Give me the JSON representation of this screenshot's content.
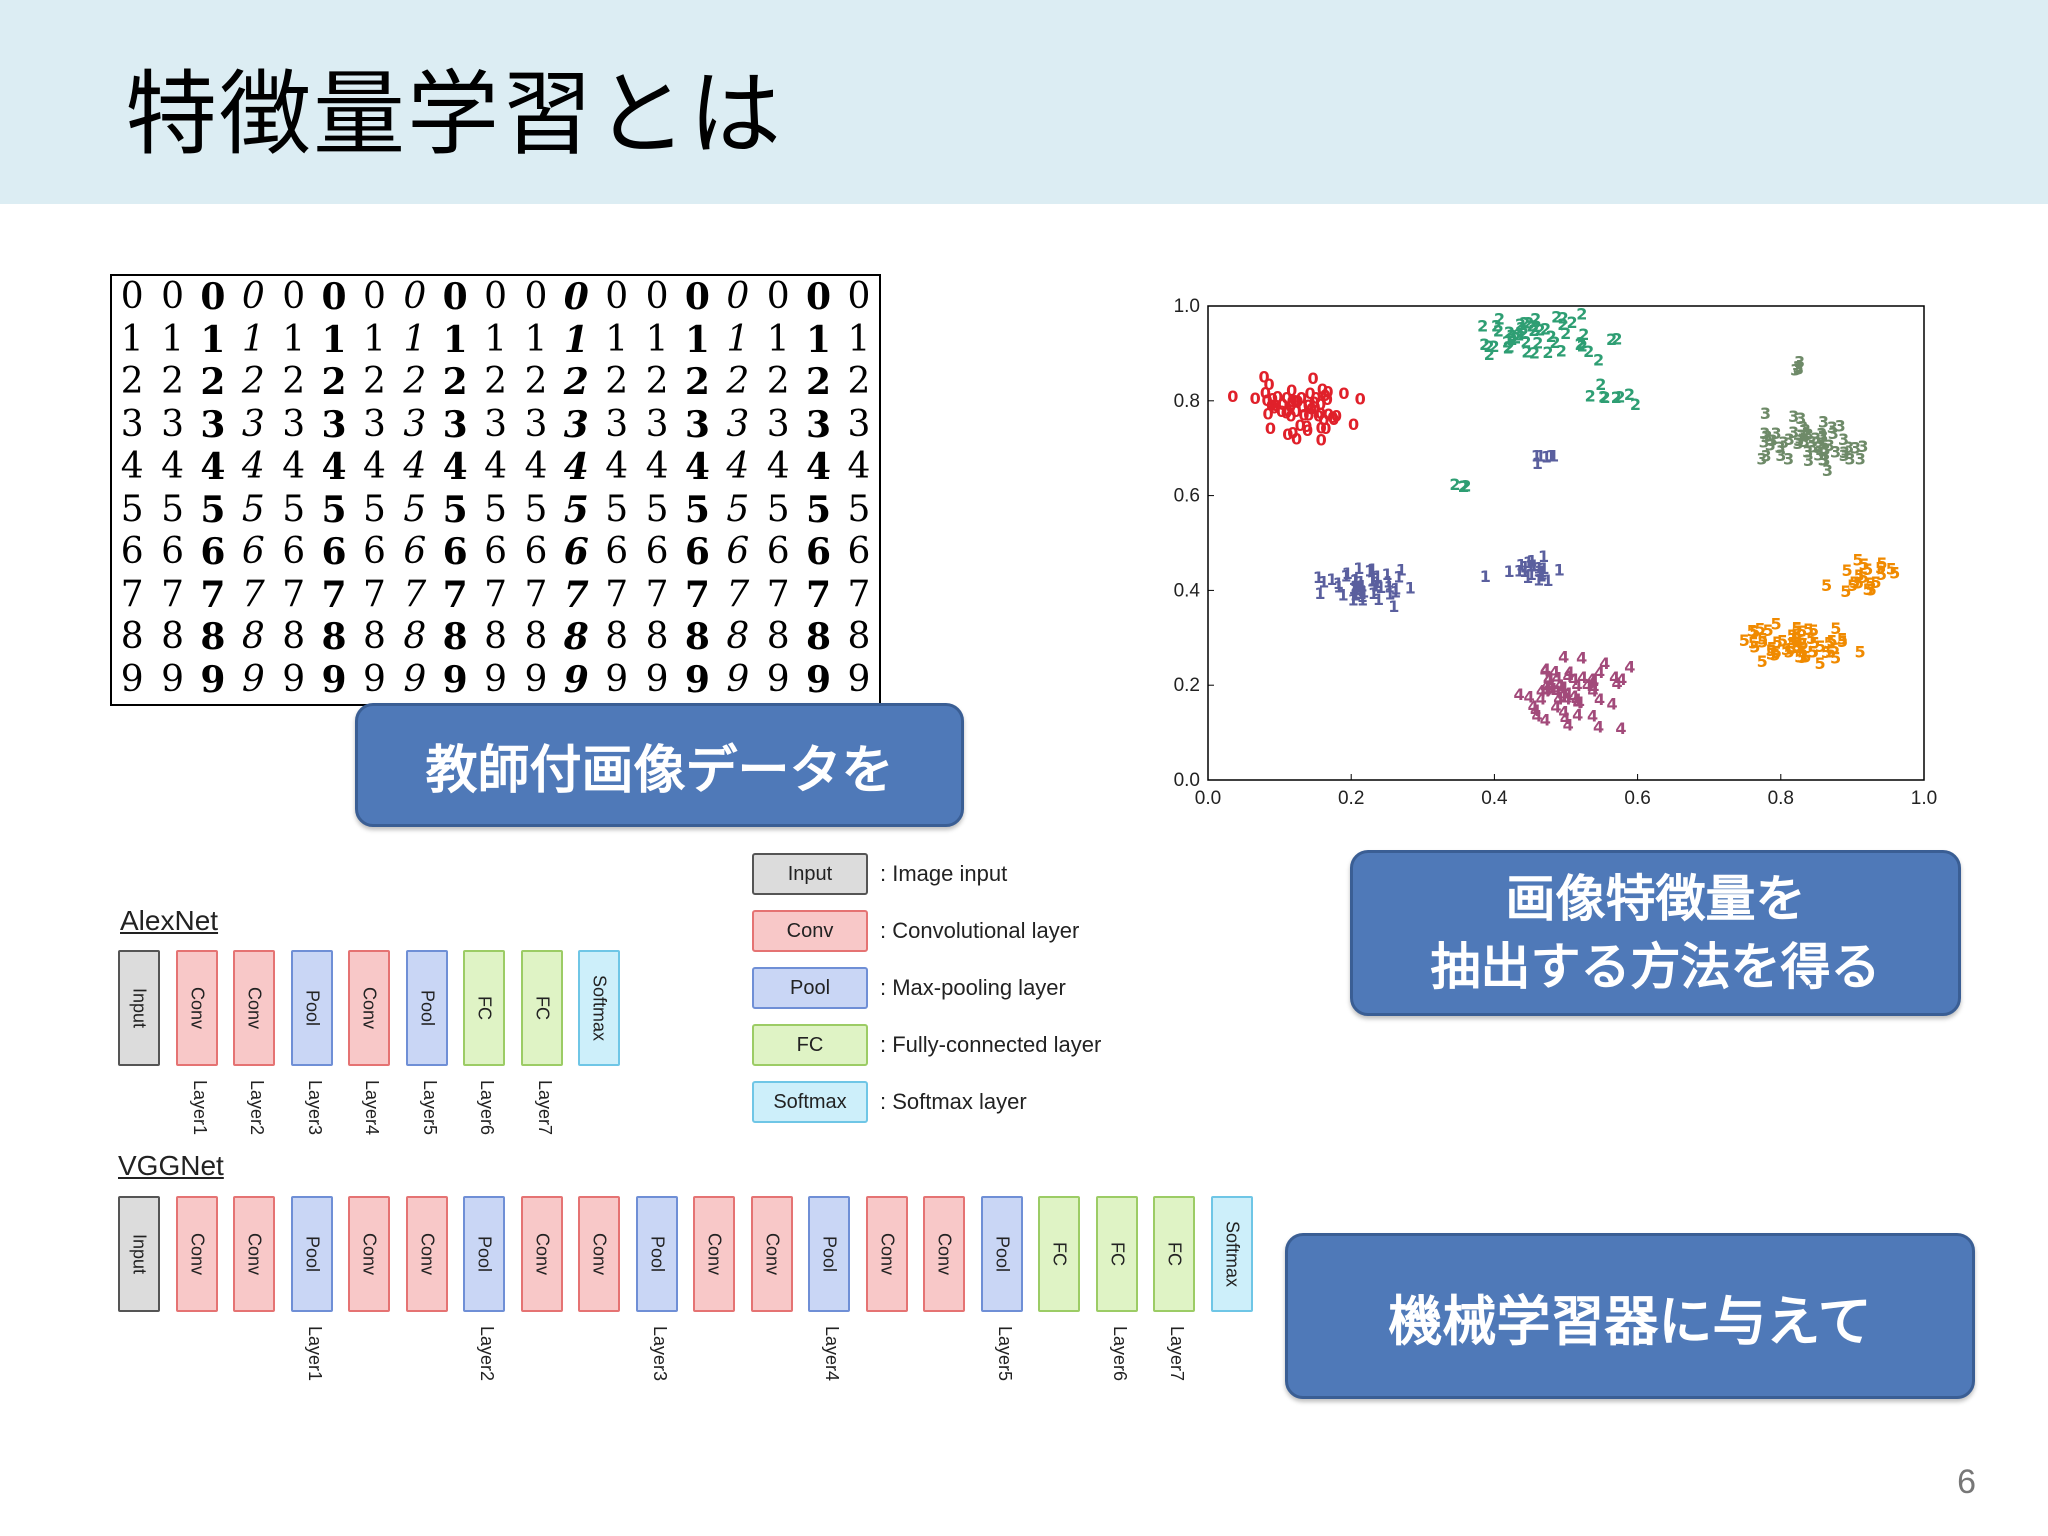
{
  "slide": {
    "title": "特徴量学習とは",
    "page_number": "6"
  },
  "mnist": {
    "rows": [
      [
        "0",
        "0",
        "0",
        "0",
        "0",
        "0",
        "0",
        "0",
        "0",
        "0",
        "0",
        "0",
        "0",
        "0",
        "0",
        "0",
        "0",
        "0",
        "0"
      ],
      [
        "1",
        "1",
        "1",
        "1",
        "1",
        "1",
        "1",
        "1",
        "1",
        "1",
        "1",
        "1",
        "1",
        "1",
        "1",
        "1",
        "1",
        "1",
        "1"
      ],
      [
        "2",
        "2",
        "2",
        "2",
        "2",
        "2",
        "2",
        "2",
        "2",
        "2",
        "2",
        "2",
        "2",
        "2",
        "2",
        "2",
        "2",
        "2",
        "2"
      ],
      [
        "3",
        "3",
        "3",
        "3",
        "3",
        "3",
        "3",
        "3",
        "3",
        "3",
        "3",
        "3",
        "3",
        "3",
        "3",
        "3",
        "3",
        "3",
        "3"
      ],
      [
        "4",
        "4",
        "4",
        "4",
        "4",
        "4",
        "4",
        "4",
        "4",
        "4",
        "4",
        "4",
        "4",
        "4",
        "4",
        "4",
        "4",
        "4",
        "4"
      ],
      [
        "5",
        "5",
        "5",
        "5",
        "5",
        "5",
        "5",
        "5",
        "5",
        "5",
        "5",
        "5",
        "5",
        "5",
        "5",
        "5",
        "5",
        "5",
        "5"
      ],
      [
        "6",
        "6",
        "6",
        "6",
        "6",
        "6",
        "6",
        "6",
        "6",
        "6",
        "6",
        "6",
        "6",
        "6",
        "6",
        "6",
        "6",
        "6",
        "6"
      ],
      [
        "7",
        "7",
        "7",
        "7",
        "7",
        "7",
        "7",
        "7",
        "7",
        "7",
        "7",
        "7",
        "7",
        "7",
        "7",
        "7",
        "7",
        "7",
        "7"
      ],
      [
        "8",
        "8",
        "8",
        "8",
        "8",
        "8",
        "8",
        "8",
        "8",
        "8",
        "8",
        "8",
        "8",
        "8",
        "8",
        "8",
        "8",
        "8",
        "8"
      ],
      [
        "9",
        "9",
        "9",
        "9",
        "9",
        "9",
        "9",
        "9",
        "9",
        "9",
        "9",
        "9",
        "9",
        "9",
        "9",
        "9",
        "9",
        "9",
        "9"
      ]
    ]
  },
  "callouts": {
    "data": "教師付画像データを",
    "method_line1": "画像特徴量を",
    "method_line2": "抽出する方法を得る",
    "learner": "機械学習器に与えて"
  },
  "chart_data": {
    "type": "scatter",
    "xlim": [
      0.0,
      1.0
    ],
    "ylim": [
      0.0,
      1.0
    ],
    "xticks": [
      "0.0",
      "0.2",
      "0.4",
      "0.6",
      "0.8",
      "1.0"
    ],
    "yticks": [
      "0.0",
      "0.2",
      "0.4",
      "0.6",
      "0.8",
      "1.0"
    ],
    "clusters": [
      {
        "label": "0",
        "color": "#e0202a",
        "center": [
          0.13,
          0.77
        ],
        "spread": [
          0.06,
          0.05
        ],
        "n": 60
      },
      {
        "label": "1",
        "color": "#5a5f9e",
        "center": [
          0.22,
          0.4
        ],
        "spread": [
          0.05,
          0.03
        ],
        "n": 45
      },
      {
        "label": "1",
        "color": "#5a5f9e",
        "center": [
          0.45,
          0.43
        ],
        "spread": [
          0.04,
          0.02
        ],
        "n": 22
      },
      {
        "label": "1",
        "color": "#5a5f9e",
        "center": [
          0.47,
          0.67
        ],
        "spread": [
          0.015,
          0.01
        ],
        "n": 6
      },
      {
        "label": "2",
        "color": "#2e9e73",
        "center": [
          0.47,
          0.92
        ],
        "spread": [
          0.08,
          0.035
        ],
        "n": 50
      },
      {
        "label": "2",
        "color": "#2e9e73",
        "center": [
          0.57,
          0.8
        ],
        "spread": [
          0.03,
          0.02
        ],
        "n": 8
      },
      {
        "label": "2",
        "color": "#2e9e73",
        "center": [
          0.36,
          0.61
        ],
        "spread": [
          0.01,
          0.01
        ],
        "n": 4
      },
      {
        "label": "3",
        "color": "#6e8a68",
        "center": [
          0.84,
          0.7
        ],
        "spread": [
          0.07,
          0.04
        ],
        "n": 55
      },
      {
        "label": "3",
        "color": "#6e8a68",
        "center": [
          0.83,
          0.86
        ],
        "spread": [
          0.01,
          0.01
        ],
        "n": 4
      },
      {
        "label": "4",
        "color": "#a24a7a",
        "center": [
          0.5,
          0.17
        ],
        "spread": [
          0.06,
          0.06
        ],
        "n": 60
      },
      {
        "label": "5",
        "color": "#f08a00",
        "center": [
          0.82,
          0.27
        ],
        "spread": [
          0.06,
          0.04
        ],
        "n": 55
      },
      {
        "label": "5",
        "color": "#f08a00",
        "center": [
          0.92,
          0.42
        ],
        "spread": [
          0.04,
          0.03
        ],
        "n": 20
      }
    ]
  },
  "legend": [
    {
      "type": "input",
      "box": "Input",
      "text": ": Image input"
    },
    {
      "type": "conv",
      "box": "Conv",
      "text": ": Convolutional layer"
    },
    {
      "type": "pool",
      "box": "Pool",
      "text": ": Max-pooling layer"
    },
    {
      "type": "fc",
      "box": "FC",
      "text": ": Fully-connected layer"
    },
    {
      "type": "softmax",
      "box": "Softmax",
      "text": ": Softmax layer"
    }
  ],
  "alexnet": {
    "title": "AlexNet",
    "blocks": [
      {
        "type": "input",
        "label": "Input",
        "layer": ""
      },
      {
        "type": "conv",
        "label": "Conv",
        "layer": "Layer1"
      },
      {
        "type": "conv",
        "label": "Conv",
        "layer": "Layer2"
      },
      {
        "type": "pool",
        "label": "Pool",
        "layer": "Layer3"
      },
      {
        "type": "conv",
        "label": "Conv",
        "layer": "Layer4"
      },
      {
        "type": "pool",
        "label": "Pool",
        "layer": "Layer5"
      },
      {
        "type": "fc",
        "label": "FC",
        "layer": "Layer6"
      },
      {
        "type": "fc",
        "label": "FC",
        "layer": "Layer7"
      },
      {
        "type": "softmax",
        "label": "Softmax",
        "layer": ""
      }
    ]
  },
  "vggnet": {
    "title": "VGGNet",
    "blocks": [
      {
        "type": "input",
        "label": "Input",
        "layer": ""
      },
      {
        "type": "conv",
        "label": "Conv",
        "layer": ""
      },
      {
        "type": "conv",
        "label": "Conv",
        "layer": ""
      },
      {
        "type": "pool",
        "label": "Pool",
        "layer": "Layer1"
      },
      {
        "type": "conv",
        "label": "Conv",
        "layer": ""
      },
      {
        "type": "conv",
        "label": "Conv",
        "layer": ""
      },
      {
        "type": "pool",
        "label": "Pool",
        "layer": "Layer2"
      },
      {
        "type": "conv",
        "label": "Conv",
        "layer": ""
      },
      {
        "type": "conv",
        "label": "Conv",
        "layer": ""
      },
      {
        "type": "pool",
        "label": "Pool",
        "layer": "Layer3"
      },
      {
        "type": "conv",
        "label": "Conv",
        "layer": ""
      },
      {
        "type": "conv",
        "label": "Conv",
        "layer": ""
      },
      {
        "type": "pool",
        "label": "Pool",
        "layer": "Layer4"
      },
      {
        "type": "conv",
        "label": "Conv",
        "layer": ""
      },
      {
        "type": "conv",
        "label": "Conv",
        "layer": ""
      },
      {
        "type": "pool",
        "label": "Pool",
        "layer": "Layer5"
      },
      {
        "type": "fc",
        "label": "FC",
        "layer": ""
      },
      {
        "type": "fc",
        "label": "FC",
        "layer": "Layer6"
      },
      {
        "type": "fc",
        "label": "FC",
        "layer": "Layer7"
      },
      {
        "type": "softmax",
        "label": "Softmax",
        "layer": ""
      }
    ]
  }
}
